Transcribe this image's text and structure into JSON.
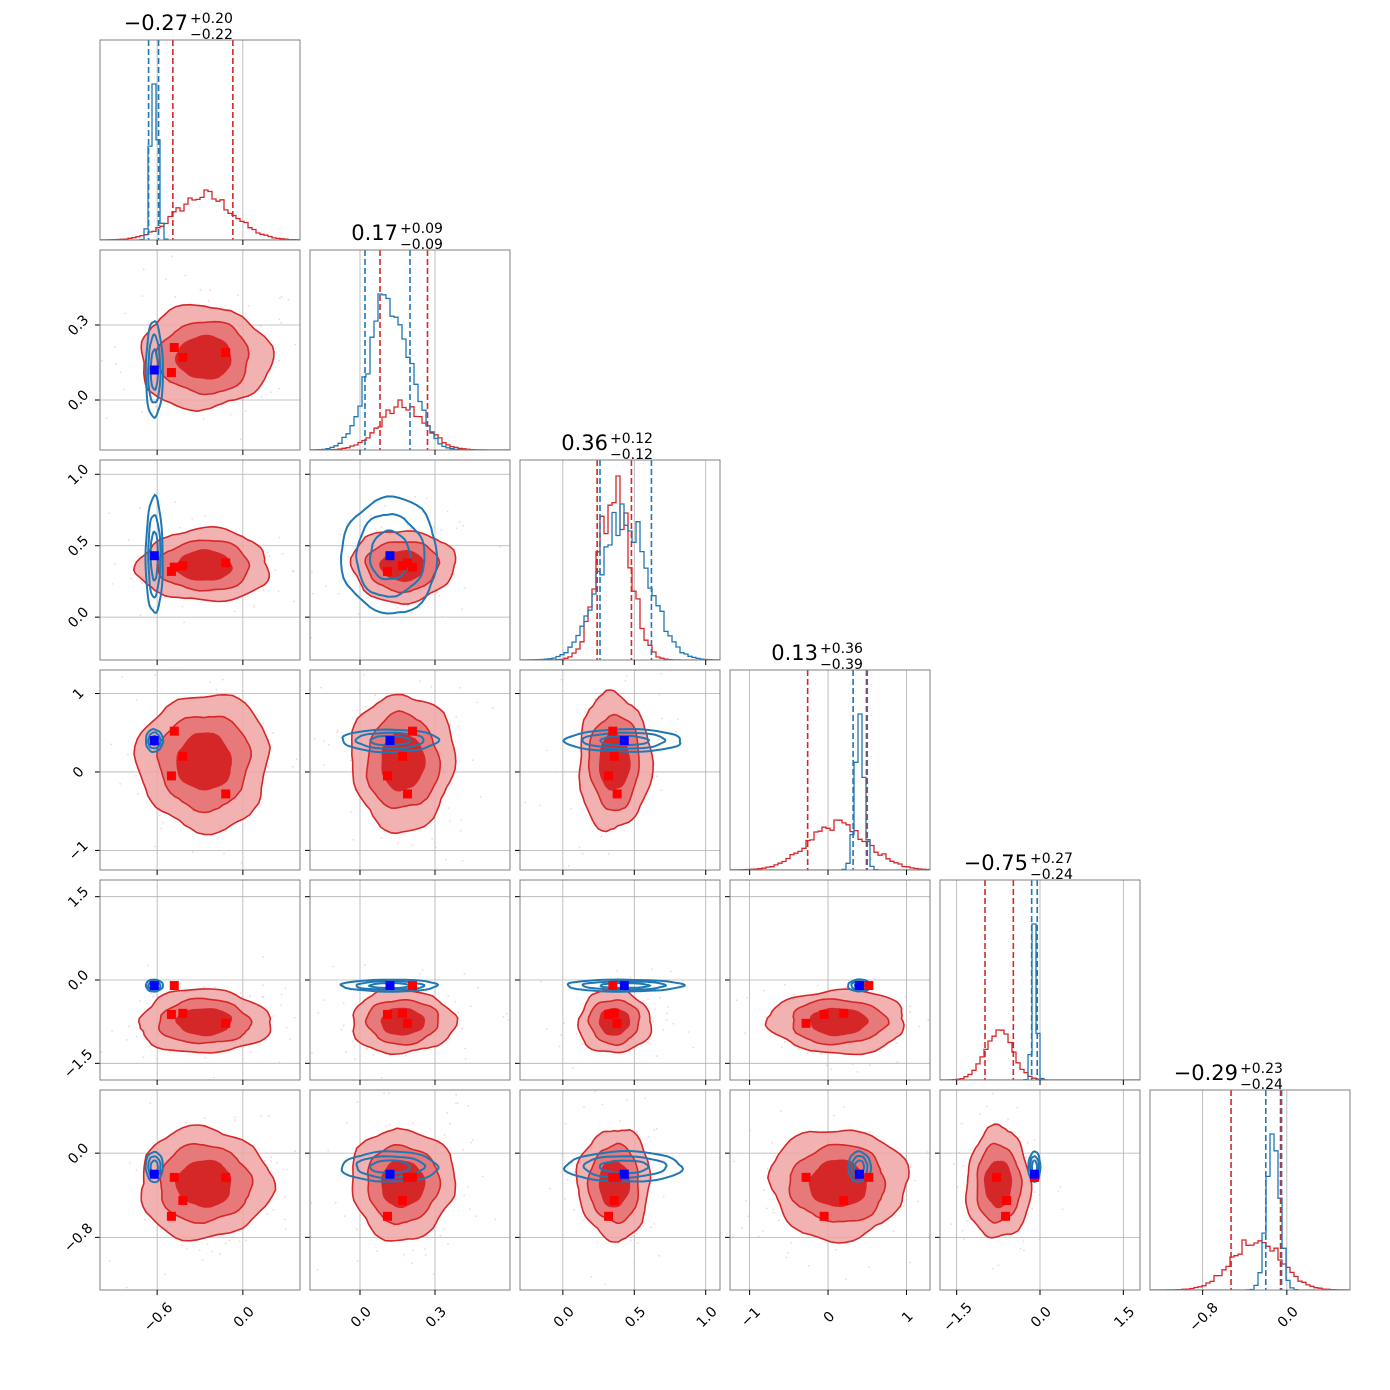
{
  "chart_data": {
    "type": "corner",
    "params": [
      {
        "title": "−0.27",
        "plus": "+0.20",
        "minus": "−0.22",
        "range": [
          -1.0,
          0.4
        ],
        "ticks": [
          -0.6,
          0.0
        ],
        "tick_labels": [
          "−0.6",
          "0.0"
        ],
        "quantiles_red": [
          -0.49,
          -0.07
        ],
        "quantiles_blue": [
          -0.66,
          -0.59
        ],
        "peak_red": -0.27,
        "width_red": 0.2,
        "peak_blue": -0.62,
        "width_blue": 0.025
      },
      {
        "title": "0.17",
        "plus": "+0.09",
        "minus": "−0.09",
        "range": [
          -0.2,
          0.6
        ],
        "ticks": [
          0.0,
          0.3
        ],
        "tick_labels": [
          "0.0",
          "0.3"
        ],
        "quantiles_red": [
          0.08,
          0.27
        ],
        "quantiles_blue": [
          0.02,
          0.2
        ],
        "peak_red": 0.17,
        "width_red": 0.09,
        "peak_blue": 0.12,
        "width_blue": 0.08
      },
      {
        "title": "0.36",
        "plus": "+0.12",
        "minus": "−0.12",
        "range": [
          -0.3,
          1.1
        ],
        "ticks": [
          0.0,
          0.5,
          1.0
        ],
        "tick_labels": [
          "0.0",
          "0.5",
          "1.0"
        ],
        "quantiles_red": [
          0.24,
          0.48
        ],
        "quantiles_blue": [
          0.26,
          0.62
        ],
        "peak_red": 0.36,
        "width_red": 0.11,
        "peak_blue": 0.43,
        "width_blue": 0.17
      },
      {
        "title": "0.13",
        "plus": "+0.36",
        "minus": "−0.39",
        "range": [
          -1.25,
          1.3
        ],
        "ticks": [
          -1,
          0,
          1
        ],
        "tick_labels": [
          "−1",
          "0",
          "1"
        ],
        "quantiles_red": [
          -0.26,
          0.49
        ],
        "quantiles_blue": [
          0.32,
          0.5
        ],
        "peak_red": 0.13,
        "width_red": 0.38,
        "peak_blue": 0.4,
        "width_blue": 0.06
      },
      {
        "title": "−0.75",
        "plus": "+0.27",
        "minus": "−0.24",
        "range": [
          -1.8,
          1.8
        ],
        "ticks": [
          -1.5,
          0.0,
          1.5
        ],
        "tick_labels": [
          "−1.5",
          "0.0",
          "1.5"
        ],
        "quantiles_red": [
          -0.99,
          -0.48
        ],
        "quantiles_blue": [
          -0.15,
          -0.05
        ],
        "peak_red": -0.75,
        "width_red": 0.25,
        "peak_blue": -0.1,
        "width_blue": 0.045
      },
      {
        "title": "−0.29",
        "plus": "+0.23",
        "minus": "−0.24",
        "range": [
          -1.3,
          0.6
        ],
        "ticks": [
          -0.8,
          0.0
        ],
        "tick_labels": [
          "−0.8",
          "0.0"
        ],
        "quantiles_red": [
          -0.53,
          -0.06
        ],
        "quantiles_blue": [
          -0.2,
          -0.05
        ],
        "peak_red": -0.29,
        "width_red": 0.23,
        "peak_blue": -0.13,
        "width_blue": 0.06
      }
    ],
    "y_axis": [
      null,
      {
        "range": [
          -0.2,
          0.6
        ],
        "ticks": [
          0.0,
          0.3
        ],
        "tick_labels": [
          "0.0",
          "0.3"
        ]
      },
      {
        "range": [
          -0.3,
          1.1
        ],
        "ticks": [
          0.0,
          0.5,
          1.0
        ],
        "tick_labels": [
          "0.0",
          "0.5",
          "1.0"
        ]
      },
      {
        "range": [
          -1.25,
          1.3
        ],
        "ticks": [
          -1,
          0,
          1
        ],
        "tick_labels": [
          "−1",
          "0",
          "1"
        ]
      },
      {
        "range": [
          -1.8,
          1.8
        ],
        "ticks": [
          -1.5,
          0.0,
          1.5
        ],
        "tick_labels": [
          "−1.5",
          "0.0",
          "1.5"
        ]
      },
      {
        "range": [
          -1.3,
          0.6
        ],
        "ticks": [
          -0.8,
          0.0
        ],
        "tick_labels": [
          "−0.8",
          "0.0"
        ]
      }
    ],
    "truth_blue": [
      -0.62,
      0.12,
      0.43,
      0.4,
      -0.1,
      -0.2
    ],
    "truth_red_points": [
      [
        -0.48,
        0.21,
        0.35,
        0.52,
        -0.1,
        -0.23
      ],
      [
        -0.42,
        0.17,
        0.36,
        0.2,
        -0.6,
        -0.45
      ],
      [
        -0.5,
        0.11,
        0.32,
        -0.05,
        -0.62,
        -0.6
      ],
      [
        -0.12,
        0.19,
        0.38,
        -0.28,
        -0.78,
        -0.23
      ]
    ],
    "grid": true,
    "colors": {
      "red": "#d62728",
      "red_fill_outer": "#f0a4a4",
      "red_fill_inner": "#d62728",
      "blue": "#1f77b4",
      "truth_blue": "#0000ff",
      "truth_red": "#ff0000"
    }
  }
}
